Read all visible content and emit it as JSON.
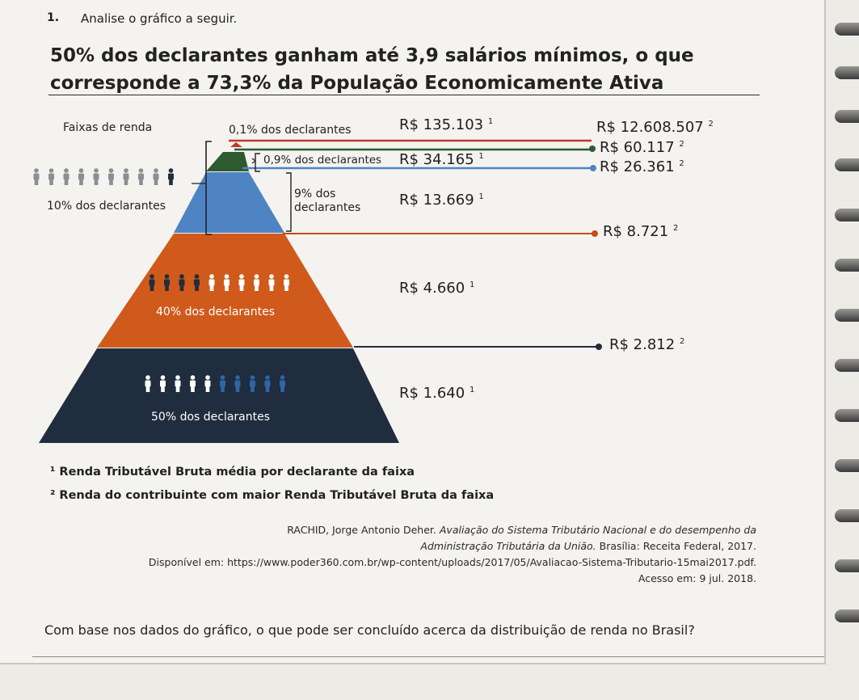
{
  "question": {
    "number": "1.",
    "prompt": "Analise o gráfico a seguir.",
    "title_line1": "50% dos declarantes ganham até 3,9 salários mínimos, o que",
    "title_line2": "corresponde a 73,3% da População Economicamente Ativa",
    "final_question": "Com base nos dados do gráfico, o que pode ser concluído acerca da distribuição de renda no Brasil?"
  },
  "chart": {
    "left_header": "Faixas de renda",
    "label_top_pct": "10% dos declarantes",
    "group_01": "0,1% dos declarantes",
    "group_09": "0,9% dos declarantes",
    "group_9_line1": "9% dos",
    "group_9_line2": "declarantes",
    "group_40": "40% dos declarantes",
    "group_50": "50% dos declarantes",
    "avg_01": "R$ 135.103",
    "avg_09": "R$ 34.165",
    "avg_9": "R$ 13.669",
    "avg_40": "R$ 4.660",
    "avg_50": "R$ 1.640",
    "max_01": "R$ 12.608.507",
    "max_09": "R$ 60.117",
    "max_9": "R$ 26.361",
    "max_10": "R$ 8.721",
    "max_50": "R$ 2.812",
    "sup1": "1",
    "sup2": "2"
  },
  "notes": {
    "note1": "¹ Renda Tributável Bruta média por declarante da faixa",
    "note2": "² Renda do contribuinte com maior Renda Tributável Bruta da faixa"
  },
  "source": {
    "line1_author": "RACHID, Jorge Antonio Deher.",
    "line1_title": "Avaliação do Sistema Tributário Nacional e do desempenho da",
    "line2_title": "Administração Tributária da União.",
    "line2_rest": "Brasília: Receita Federal, 2017.",
    "line3": "Disponível em: https://www.poder360.com.br/wp-content/uploads/2017/05/Avaliacao-Sistema-Tributario-15mai2017.pdf.",
    "line4": "Acesso em: 9 jul. 2018."
  },
  "colors": {
    "red": "#c0392b",
    "green": "#2e5a31",
    "blue": "#4f84c4",
    "orange": "#cf5a1c",
    "navy": "#202d3e"
  }
}
